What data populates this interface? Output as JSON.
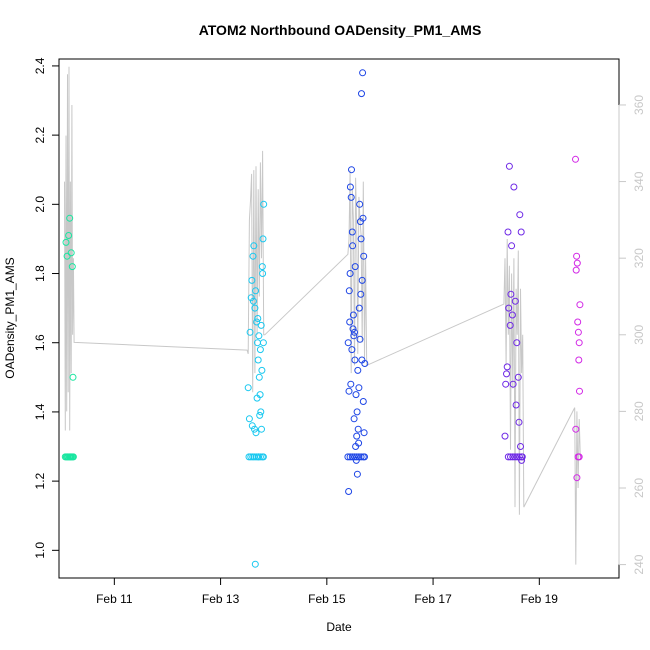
{
  "chart_data": {
    "type": "scatter",
    "title": "ATOM2 Northbound OADensity_PM1_AMS",
    "xlabel": "Date",
    "ylabel": "OADensity_PM1_AMS",
    "x_axis": {
      "kind": "date",
      "range": [
        "2017-02-09T23:00",
        "2017-02-20T12:00"
      ],
      "ticks": [
        {
          "value": "2017-02-11",
          "label": "Feb 11"
        },
        {
          "value": "2017-02-13",
          "label": "Feb 13"
        },
        {
          "value": "2017-02-15",
          "label": "Feb 15"
        },
        {
          "value": "2017-02-17",
          "label": "Feb 17"
        },
        {
          "value": "2017-02-19",
          "label": "Feb 19"
        }
      ]
    },
    "y_axis": {
      "range": [
        0.92,
        2.42
      ],
      "ticks": [
        {
          "value": 1.0,
          "label": "1.0"
        },
        {
          "value": 1.2,
          "label": "1.2"
        },
        {
          "value": 1.4,
          "label": "1.4"
        },
        {
          "value": 1.6,
          "label": "1.6"
        },
        {
          "value": 1.8,
          "label": "1.8"
        },
        {
          "value": 2.0,
          "label": "2.0"
        },
        {
          "value": 2.2,
          "label": "2.2"
        },
        {
          "value": 2.4,
          "label": "2.4"
        }
      ]
    },
    "y2_axis": {
      "range": [
        236.5,
        372
      ],
      "color": "#c8c8c8",
      "ticks": [
        {
          "value": 240,
          "label": "240"
        },
        {
          "value": 260,
          "label": "260"
        },
        {
          "value": 280,
          "label": "280"
        },
        {
          "value": 300,
          "label": "300"
        },
        {
          "value": 320,
          "label": "320"
        },
        {
          "value": 340,
          "label": "340"
        },
        {
          "value": 360,
          "label": "360"
        }
      ]
    },
    "grid": false,
    "legend": "none",
    "series": [
      {
        "color": "#19e6a0",
        "x": [
          "2017-02-10T02:10",
          "2017-02-10T02:40",
          "2017-02-10T03:20",
          "2017-02-10T03:50",
          "2017-02-10T04:30",
          "2017-02-10T05:00",
          "2017-02-10T05:20",
          "2017-02-10T01:50",
          "2017-02-10T02:20",
          "2017-02-10T02:50",
          "2017-02-10T03:10",
          "2017-02-10T03:40",
          "2017-02-10T04:00",
          "2017-02-10T04:20",
          "2017-02-10T04:40",
          "2017-02-10T05:10",
          "2017-02-10T05:30"
        ],
        "y": [
          1.89,
          1.85,
          1.91,
          1.96,
          1.86,
          1.82,
          1.5,
          1.27,
          1.27,
          1.27,
          1.27,
          1.27,
          1.27,
          1.27,
          1.27,
          1.27,
          1.27
        ]
      },
      {
        "color": "#19c8f0",
        "x": [
          "2017-02-13T12:30",
          "2017-02-13T13:00",
          "2017-02-13T13:20",
          "2017-02-13T13:50",
          "2017-02-13T14:10",
          "2017-02-13T14:40",
          "2017-02-13T15:00",
          "2017-02-13T15:30",
          "2017-02-13T15:50",
          "2017-02-13T16:20",
          "2017-02-13T16:40",
          "2017-02-13T17:00",
          "2017-02-13T17:30",
          "2017-02-13T17:50",
          "2017-02-13T18:10",
          "2017-02-13T18:30",
          "2017-02-13T18:50",
          "2017-02-13T19:10",
          "2017-02-13T19:30",
          "2017-02-13T14:20",
          "2017-02-13T15:20",
          "2017-02-13T16:00",
          "2017-02-13T16:50",
          "2017-02-13T17:20",
          "2017-02-13T18:00",
          "2017-02-13T18:40",
          "2017-02-13T19:00",
          "2017-02-13T14:50",
          "2017-02-13T16:30",
          "2017-02-13T17:40",
          "2017-02-13T18:20",
          "2017-02-13T19:20",
          "2017-02-13T15:40",
          "2017-02-13T17:10",
          "2017-02-13T12:50",
          "2017-02-13T13:40",
          "2017-02-13T14:30",
          "2017-02-13T15:10",
          "2017-02-13T16:10",
          "2017-02-13T17:00",
          "2017-02-13T18:00",
          "2017-02-13T18:50",
          "2017-02-13T19:20"
        ],
        "y": [
          1.47,
          1.38,
          1.63,
          1.73,
          1.78,
          1.85,
          1.88,
          1.7,
          1.75,
          1.66,
          1.6,
          1.55,
          1.5,
          1.45,
          1.4,
          1.35,
          1.82,
          1.9,
          2.0,
          1.36,
          1.35,
          1.34,
          1.67,
          1.62,
          1.58,
          1.52,
          1.8,
          1.72,
          1.44,
          1.39,
          1.65,
          1.6,
          0.96,
          1.27,
          1.27,
          1.27,
          1.27,
          1.27,
          1.27,
          1.27,
          1.27,
          1.27,
          1.27
        ]
      },
      {
        "color": "#1e46e6",
        "x": [
          "2017-02-15T09:40",
          "2017-02-15T10:10",
          "2017-02-15T10:40",
          "2017-02-15T11:10",
          "2017-02-15T11:40",
          "2017-02-15T12:10",
          "2017-02-15T12:40",
          "2017-02-15T13:10",
          "2017-02-15T13:40",
          "2017-02-15T14:10",
          "2017-02-15T14:40",
          "2017-02-15T15:10",
          "2017-02-15T15:40",
          "2017-02-15T16:10",
          "2017-02-15T16:40",
          "2017-02-15T17:10",
          "2017-02-15T10:00",
          "2017-02-15T10:30",
          "2017-02-15T11:00",
          "2017-02-15T11:30",
          "2017-02-15T12:00",
          "2017-02-15T12:30",
          "2017-02-15T13:00",
          "2017-02-15T13:30",
          "2017-02-15T14:00",
          "2017-02-15T14:30",
          "2017-02-15T15:00",
          "2017-02-15T15:30",
          "2017-02-15T16:00",
          "2017-02-15T16:30",
          "2017-02-15T10:20",
          "2017-02-15T11:20",
          "2017-02-15T12:20",
          "2017-02-15T13:20",
          "2017-02-15T14:20",
          "2017-02-15T15:20",
          "2017-02-15T16:20",
          "2017-02-15T09:50",
          "2017-02-15T13:50",
          "2017-02-15T15:50",
          "2017-02-15T11:50",
          "2017-02-15T12:50",
          "2017-02-15T14:50",
          "2017-02-15T10:50",
          "2017-02-15T16:50",
          "2017-02-15T09:30",
          "2017-02-15T10:30",
          "2017-02-15T11:30",
          "2017-02-15T12:30",
          "2017-02-15T13:30",
          "2017-02-15T14:30",
          "2017-02-15T15:30",
          "2017-02-15T16:30",
          "2017-02-15T17:00"
        ],
        "y": [
          1.6,
          1.75,
          2.05,
          2.1,
          1.88,
          1.62,
          1.55,
          1.45,
          1.4,
          1.35,
          1.7,
          1.95,
          2.32,
          2.38,
          1.85,
          1.54,
          1.46,
          1.8,
          2.02,
          1.92,
          1.68,
          1.63,
          1.3,
          1.33,
          1.52,
          1.47,
          1.61,
          1.9,
          1.78,
          1.43,
          1.66,
          1.58,
          1.38,
          1.26,
          1.31,
          1.74,
          1.96,
          1.17,
          1.22,
          1.55,
          1.64,
          1.82,
          2.0,
          1.48,
          1.34,
          1.27,
          1.27,
          1.27,
          1.27,
          1.27,
          1.27,
          1.27,
          1.27,
          1.27
        ]
      },
      {
        "color": "#6e28e6",
        "x": [
          "2017-02-18T08:30",
          "2017-02-18T09:10",
          "2017-02-18T09:50",
          "2017-02-18T10:30",
          "2017-02-18T11:10",
          "2017-02-18T11:50",
          "2017-02-18T12:30",
          "2017-02-18T13:10",
          "2017-02-18T13:50",
          "2017-02-18T14:30",
          "2017-02-18T15:10",
          "2017-02-18T15:50",
          "2017-02-18T16:20",
          "2017-02-18T09:30",
          "2017-02-18T10:50",
          "2017-02-18T12:10",
          "2017-02-18T13:30",
          "2017-02-18T14:50",
          "2017-02-18T15:30",
          "2017-02-18T11:30",
          "2017-02-18T16:00",
          "2017-02-18T10:10",
          "2017-02-18T08:50",
          "2017-02-18T10:00",
          "2017-02-18T11:00",
          "2017-02-18T12:00",
          "2017-02-18T13:00",
          "2017-02-18T14:00",
          "2017-02-18T15:00",
          "2017-02-18T16:00"
        ],
        "y": [
          1.33,
          1.51,
          1.92,
          2.11,
          1.74,
          1.68,
          2.05,
          1.72,
          1.6,
          1.5,
          1.97,
          1.92,
          1.27,
          1.53,
          1.65,
          1.48,
          1.42,
          1.37,
          1.3,
          1.88,
          1.26,
          1.7,
          1.48,
          1.27,
          1.27,
          1.27,
          1.27,
          1.27,
          1.27,
          1.27
        ]
      },
      {
        "color": "#d228e6",
        "x": [
          "2017-02-19T16:20",
          "2017-02-19T16:50",
          "2017-02-19T17:10",
          "2017-02-19T17:40",
          "2017-02-19T18:00",
          "2017-02-19T18:20",
          "2017-02-19T16:40",
          "2017-02-19T17:20",
          "2017-02-19T17:50",
          "2017-02-19T18:10",
          "2017-02-19T16:30",
          "2017-02-19T17:00",
          "2017-02-19T17:30",
          "2017-02-19T18:00"
        ],
        "y": [
          2.13,
          1.85,
          1.83,
          1.63,
          1.6,
          1.71,
          1.81,
          1.66,
          1.55,
          1.46,
          1.35,
          1.21,
          1.27,
          1.27
        ]
      }
    ],
    "y2_line": {
      "color": "#c8c8c8",
      "axis": "right",
      "x": [
        "2017-02-10T01:30",
        "2017-02-10T01:50",
        "2017-02-10T02:10",
        "2017-02-10T02:30",
        "2017-02-10T02:50",
        "2017-02-10T03:10",
        "2017-02-10T03:30",
        "2017-02-10T03:50",
        "2017-02-10T04:10",
        "2017-02-10T04:30",
        "2017-02-10T04:50",
        "2017-02-10T05:10",
        "2017-02-10T05:30",
        "2017-02-10T05:50",
        "2017-02-10T06:00",
        "2017-02-13T12:00",
        "2017-02-13T12:30",
        "2017-02-13T13:00",
        "2017-02-13T13:30",
        "2017-02-13T14:00",
        "2017-02-13T14:30",
        "2017-02-13T15:00",
        "2017-02-13T15:30",
        "2017-02-13T16:00",
        "2017-02-13T16:30",
        "2017-02-13T17:00",
        "2017-02-13T17:30",
        "2017-02-13T18:00",
        "2017-02-13T18:30",
        "2017-02-13T19:00",
        "2017-02-13T19:30",
        "2017-02-13T20:00",
        "2017-02-15T09:30",
        "2017-02-15T10:00",
        "2017-02-15T10:30",
        "2017-02-15T11:00",
        "2017-02-15T11:30",
        "2017-02-15T12:00",
        "2017-02-15T12:30",
        "2017-02-15T13:00",
        "2017-02-15T13:30",
        "2017-02-15T14:00",
        "2017-02-15T14:30",
        "2017-02-15T15:00",
        "2017-02-15T15:30",
        "2017-02-15T16:00",
        "2017-02-15T16:30",
        "2017-02-15T17:00",
        "2017-02-15T17:30",
        "2017-02-15T18:00",
        "2017-02-18T08:00",
        "2017-02-18T08:30",
        "2017-02-18T09:00",
        "2017-02-18T09:30",
        "2017-02-18T10:00",
        "2017-02-18T10:30",
        "2017-02-18T11:00",
        "2017-02-18T11:30",
        "2017-02-18T12:00",
        "2017-02-18T12:30",
        "2017-02-18T13:00",
        "2017-02-18T13:30",
        "2017-02-18T14:00",
        "2017-02-18T14:30",
        "2017-02-18T15:00",
        "2017-02-18T15:30",
        "2017-02-18T16:00",
        "2017-02-18T16:30",
        "2017-02-18T17:00",
        "2017-02-19T16:00",
        "2017-02-19T16:30",
        "2017-02-19T17:00",
        "2017-02-19T17:30",
        "2017-02-19T18:00",
        "2017-02-19T18:30"
      ],
      "y": [
        340,
        275,
        352,
        280,
        368,
        285,
        370,
        275,
        340,
        290,
        360,
        300,
        320,
        298,
        298,
        296,
        295,
        330,
        335,
        342,
        285,
        343,
        290,
        344,
        300,
        338,
        310,
        345,
        320,
        348,
        300,
        300,
        321,
        325,
        343,
        290,
        338,
        330,
        292,
        341,
        328,
        295,
        336,
        330,
        326,
        298,
        340,
        294,
        320,
        292,
        308,
        320,
        292,
        325,
        300,
        318,
        270,
        316,
        286,
        320,
        255,
        312,
        300,
        322,
        253,
        312,
        290,
        300,
        255,
        281,
        240,
        280,
        260,
        278,
        268
      ]
    }
  }
}
